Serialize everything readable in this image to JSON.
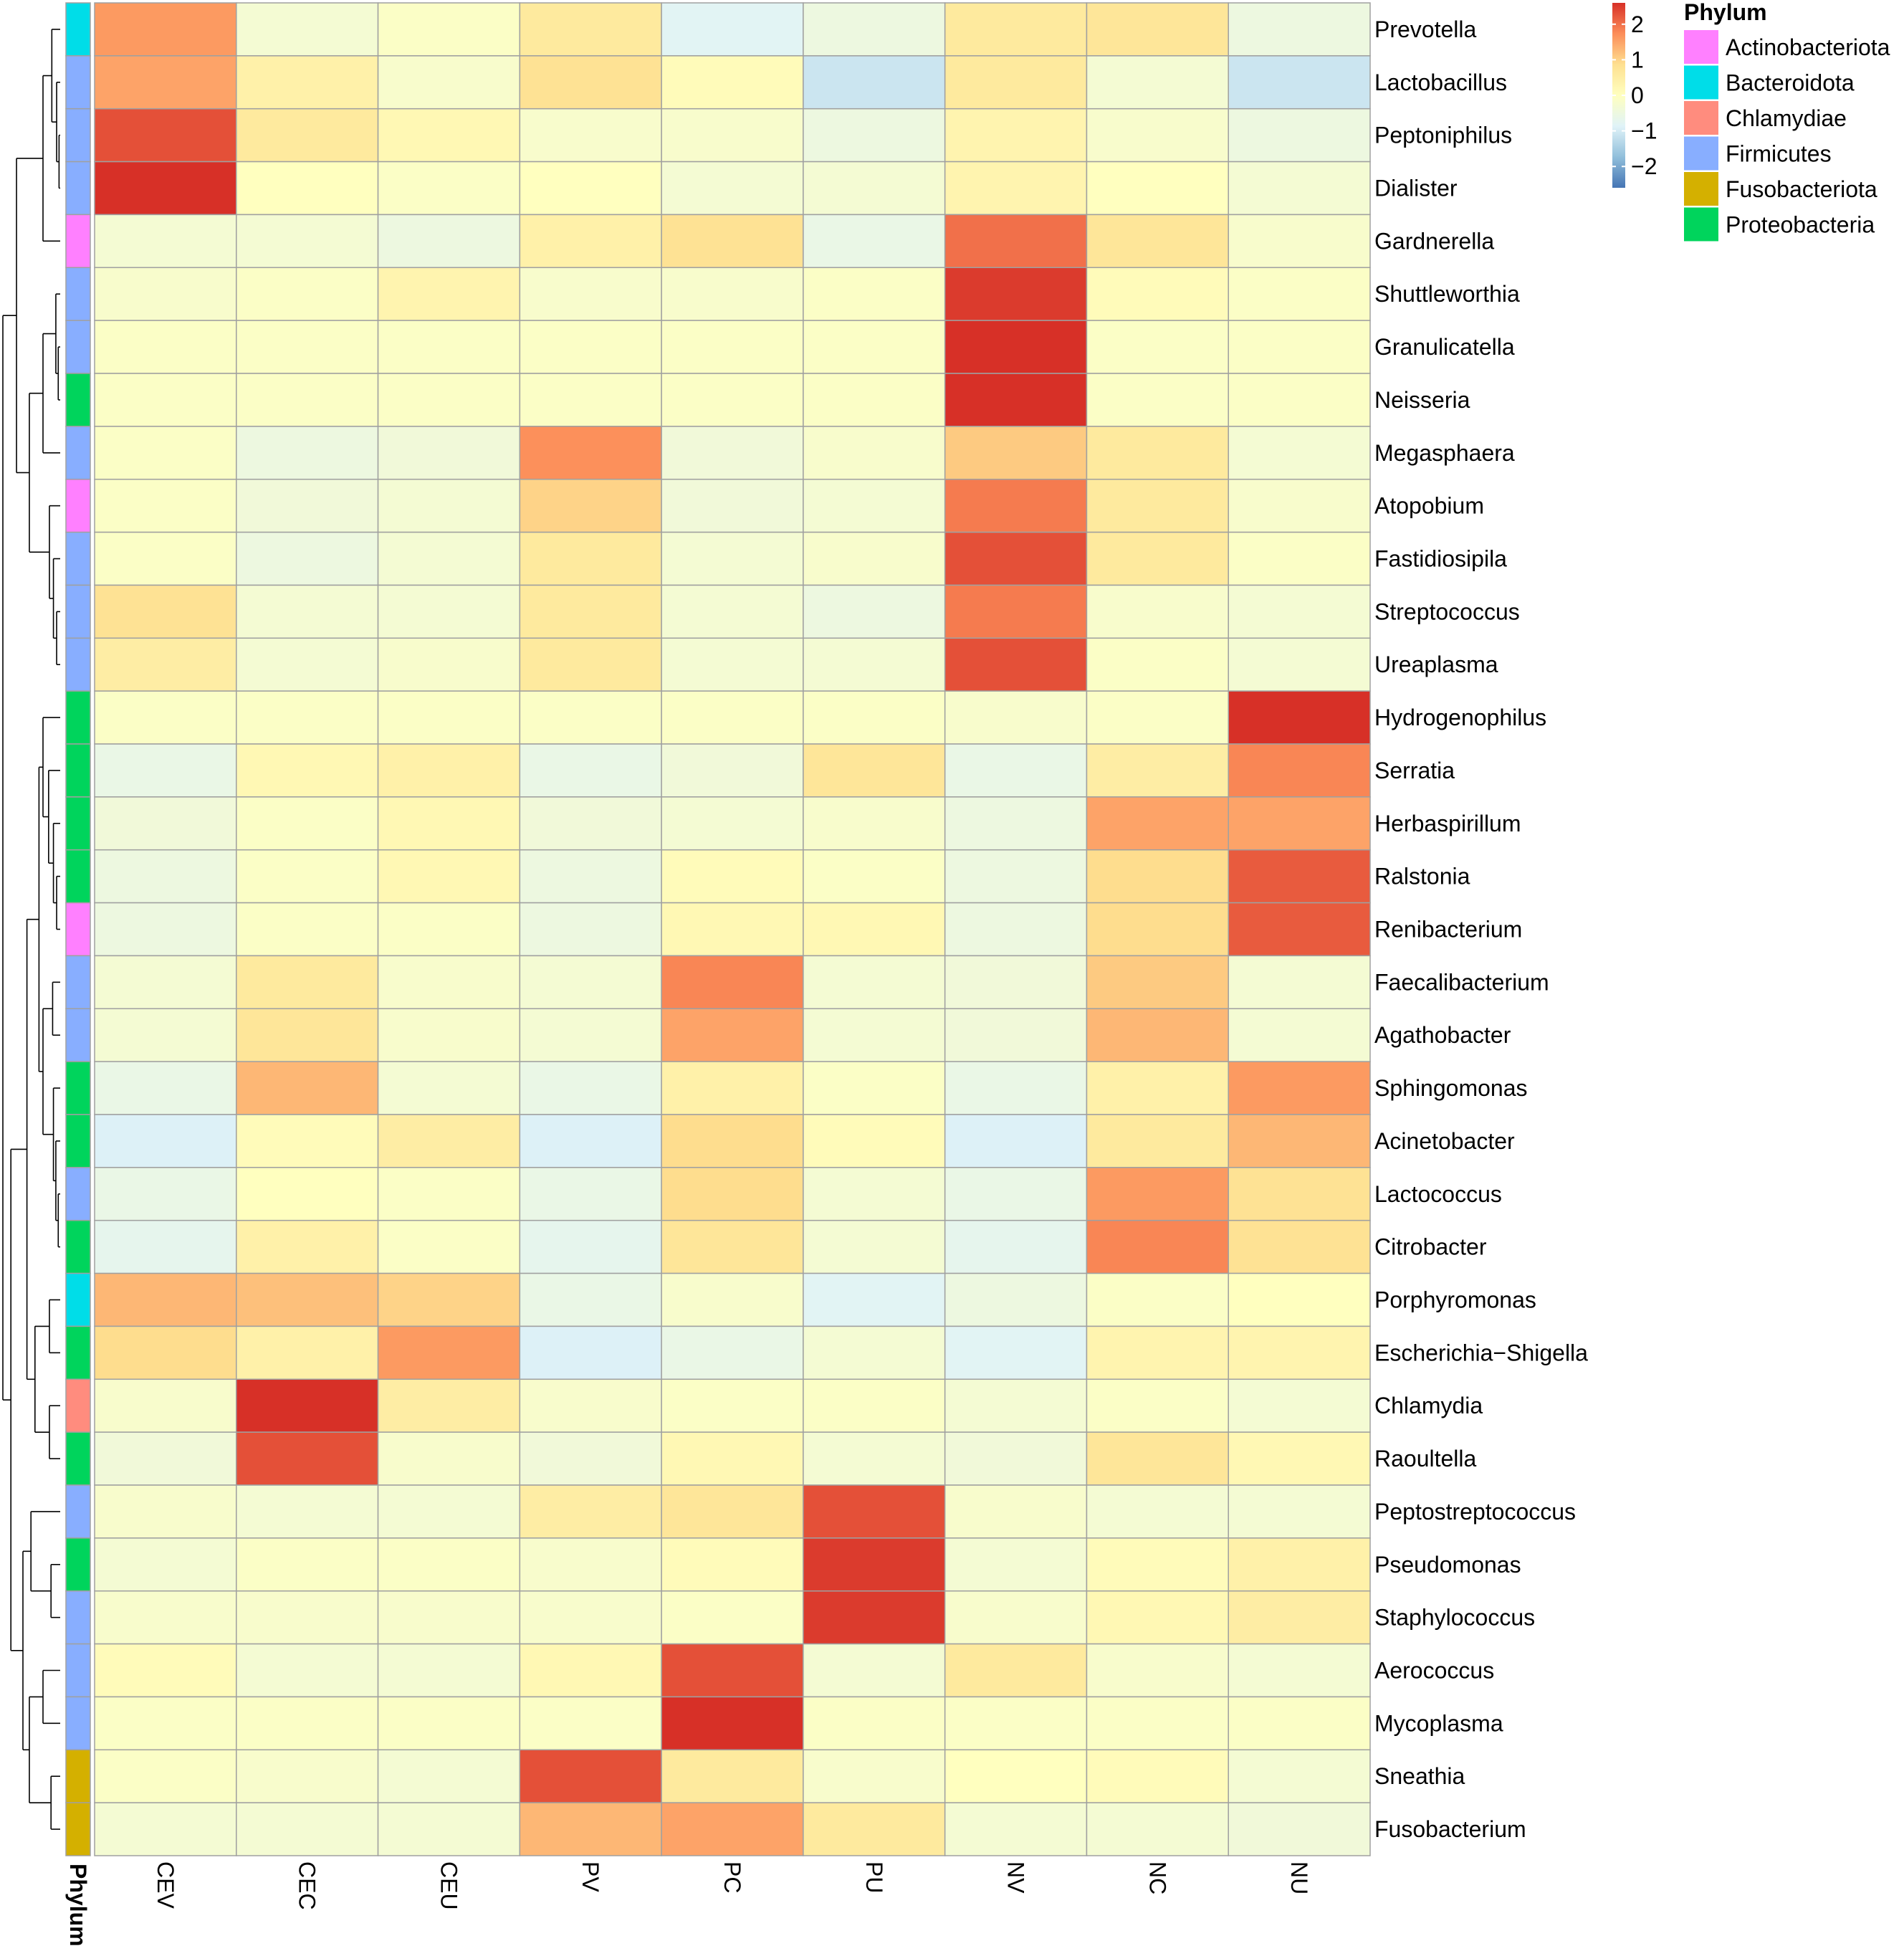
{
  "chart_data": {
    "type": "heatmap",
    "title": "",
    "columns": [
      "CEV",
      "CEC",
      "CEU",
      "PV",
      "PC",
      "PU",
      "NV",
      "NC",
      "NU"
    ],
    "rows": [
      "Prevotella",
      "Lactobacillus",
      "Peptoniphilus",
      "Dialister",
      "Gardnerella",
      "Shuttleworthia",
      "Granulicatella",
      "Neisseria",
      "Megasphaera",
      "Atopobium",
      "Fastidiosipila",
      "Streptococcus",
      "Ureaplasma",
      "Hydrogenophilus",
      "Serratia",
      "Herbaspirillum",
      "Ralstonia",
      "Renibacterium",
      "Faecalibacterium",
      "Agathobacter",
      "Sphingomonas",
      "Acinetobacter",
      "Lactococcus",
      "Citrobacter",
      "Porphyromonas",
      "Escherichia−Shigella",
      "Chlamydia",
      "Raoultella",
      "Peptostreptococcus",
      "Pseudomonas",
      "Staphylococcus",
      "Aerococcus",
      "Mycoplasma",
      "Sneathia",
      "Fusobacterium"
    ],
    "row_phylum": [
      "Bacteroidota",
      "Firmicutes",
      "Firmicutes",
      "Firmicutes",
      "Actinobacteriota",
      "Firmicutes",
      "Firmicutes",
      "Proteobacteria",
      "Firmicutes",
      "Actinobacteriota",
      "Firmicutes",
      "Firmicutes",
      "Firmicutes",
      "Proteobacteria",
      "Proteobacteria",
      "Proteobacteria",
      "Proteobacteria",
      "Actinobacteriota",
      "Firmicutes",
      "Firmicutes",
      "Proteobacteria",
      "Proteobacteria",
      "Firmicutes",
      "Proteobacteria",
      "Bacteroidota",
      "Proteobacteria",
      "Chlamydiae",
      "Proteobacteria",
      "Firmicutes",
      "Proteobacteria",
      "Firmicutes",
      "Firmicutes",
      "Firmicutes",
      "Fusobacteriota",
      "Fusobacteriota"
    ],
    "values": [
      [
        1.6,
        -0.3,
        -0.1,
        0.6,
        -0.8,
        -0.5,
        0.6,
        0.7,
        -0.5
      ],
      [
        1.5,
        0.4,
        -0.2,
        0.8,
        0.1,
        -1.1,
        0.6,
        -0.3,
        -1.1
      ],
      [
        2.3,
        0.6,
        0.2,
        -0.2,
        -0.2,
        -0.5,
        0.3,
        -0.2,
        -0.5
      ],
      [
        2.6,
        0.0,
        -0.1,
        0.0,
        -0.3,
        -0.3,
        0.3,
        0.0,
        -0.3
      ],
      [
        -0.3,
        -0.3,
        -0.5,
        0.4,
        0.8,
        -0.6,
        2.0,
        0.7,
        -0.2
      ],
      [
        -0.2,
        -0.1,
        0.3,
        -0.2,
        -0.2,
        -0.1,
        2.5,
        0.1,
        -0.1
      ],
      [
        -0.1,
        -0.1,
        -0.1,
        -0.1,
        -0.1,
        -0.1,
        2.6,
        -0.1,
        -0.1
      ],
      [
        -0.1,
        -0.1,
        -0.1,
        -0.1,
        -0.1,
        -0.1,
        2.6,
        -0.1,
        -0.1
      ],
      [
        -0.1,
        -0.5,
        -0.4,
        1.7,
        -0.4,
        -0.2,
        1.1,
        0.6,
        -0.3
      ],
      [
        -0.1,
        -0.4,
        -0.3,
        1.0,
        -0.4,
        -0.3,
        1.9,
        0.6,
        -0.2
      ],
      [
        -0.1,
        -0.5,
        -0.3,
        0.6,
        -0.3,
        -0.2,
        2.3,
        0.6,
        -0.1
      ],
      [
        0.8,
        -0.3,
        -0.3,
        0.6,
        -0.3,
        -0.5,
        1.9,
        -0.2,
        -0.3
      ],
      [
        0.5,
        -0.3,
        -0.2,
        0.6,
        -0.3,
        -0.3,
        2.3,
        -0.1,
        -0.3
      ],
      [
        -0.1,
        -0.1,
        -0.1,
        -0.1,
        -0.1,
        -0.1,
        -0.2,
        -0.1,
        2.6
      ],
      [
        -0.6,
        0.2,
        0.4,
        -0.6,
        -0.4,
        0.7,
        -0.6,
        0.5,
        1.8
      ],
      [
        -0.4,
        -0.1,
        0.2,
        -0.4,
        -0.3,
        -0.2,
        -0.5,
        1.5,
        1.5
      ],
      [
        -0.5,
        -0.1,
        0.2,
        -0.5,
        0.1,
        -0.1,
        -0.5,
        0.9,
        2.2
      ],
      [
        -0.5,
        -0.1,
        -0.1,
        -0.5,
        0.2,
        0.2,
        -0.5,
        0.9,
        2.2
      ],
      [
        -0.3,
        0.6,
        -0.2,
        -0.3,
        1.8,
        -0.3,
        -0.4,
        1.1,
        -0.3
      ],
      [
        -0.3,
        0.7,
        -0.2,
        -0.3,
        1.5,
        -0.3,
        -0.4,
        1.3,
        -0.3
      ],
      [
        -0.6,
        1.3,
        -0.3,
        -0.6,
        0.4,
        -0.1,
        -0.6,
        0.4,
        1.6
      ],
      [
        -0.9,
        0.1,
        0.5,
        -0.9,
        0.9,
        0.1,
        -0.9,
        0.6,
        1.3
      ],
      [
        -0.6,
        0.0,
        -0.1,
        -0.6,
        0.9,
        -0.3,
        -0.6,
        1.6,
        0.8
      ],
      [
        -0.7,
        0.4,
        -0.1,
        -0.7,
        0.7,
        -0.3,
        -0.7,
        1.8,
        0.8
      ],
      [
        1.3,
        1.2,
        1.0,
        -0.6,
        -0.2,
        -0.8,
        -0.5,
        -0.1,
        0.0
      ],
      [
        0.9,
        0.4,
        1.6,
        -0.9,
        -0.6,
        -0.3,
        -0.8,
        0.3,
        0.3
      ],
      [
        -0.2,
        2.6,
        0.5,
        -0.2,
        -0.1,
        -0.1,
        -0.3,
        -0.1,
        -0.3
      ],
      [
        -0.4,
        2.3,
        -0.2,
        -0.4,
        0.2,
        -0.3,
        -0.4,
        0.7,
        0.2
      ],
      [
        -0.2,
        -0.3,
        -0.3,
        0.5,
        0.7,
        2.3,
        -0.2,
        -0.3,
        -0.3
      ],
      [
        -0.3,
        -0.1,
        -0.1,
        -0.2,
        0.1,
        2.5,
        -0.3,
        0.1,
        0.4
      ],
      [
        -0.2,
        -0.2,
        -0.2,
        -0.2,
        -0.1,
        2.5,
        -0.2,
        0.2,
        0.5
      ],
      [
        0.1,
        -0.3,
        -0.3,
        0.2,
        2.3,
        -0.3,
        0.6,
        -0.2,
        -0.3
      ],
      [
        -0.1,
        -0.1,
        -0.1,
        -0.1,
        2.6,
        -0.1,
        -0.1,
        -0.1,
        -0.1
      ],
      [
        -0.1,
        -0.2,
        -0.3,
        2.3,
        0.6,
        -0.2,
        0.0,
        0.1,
        -0.3
      ],
      [
        -0.3,
        -0.3,
        -0.3,
        1.3,
        1.5,
        0.6,
        -0.3,
        -0.3,
        -0.4
      ]
    ],
    "color_scale": {
      "min": -2.6,
      "max": 2.6,
      "ticks": [
        2,
        1,
        0,
        -1,
        -2
      ],
      "tick_labels": [
        "2",
        "1",
        "0",
        "−1",
        "−2"
      ],
      "stops": [
        "#4575B4",
        "#91BFDB",
        "#E0F3F8",
        "#FFFFBF",
        "#FEE090",
        "#FC8D59",
        "#D73027"
      ]
    },
    "annotation_label": "Phylum",
    "legend": {
      "title": "Phylum",
      "entries": [
        {
          "name": "Actinobacteriota",
          "color": "#FF80FF"
        },
        {
          "name": "Bacteroidota",
          "color": "#00DDE8"
        },
        {
          "name": "Chlamydiae",
          "color": "#FF8C7E"
        },
        {
          "name": "Firmicutes",
          "color": "#88AEFF"
        },
        {
          "name": "Fusobacteriota",
          "color": "#D4B000"
        },
        {
          "name": "Proteobacteria",
          "color": "#00D45C"
        }
      ]
    },
    "dendrogram": "hierarchical row clustering (left)",
    "cell_border_color": "#A0A0A0"
  }
}
